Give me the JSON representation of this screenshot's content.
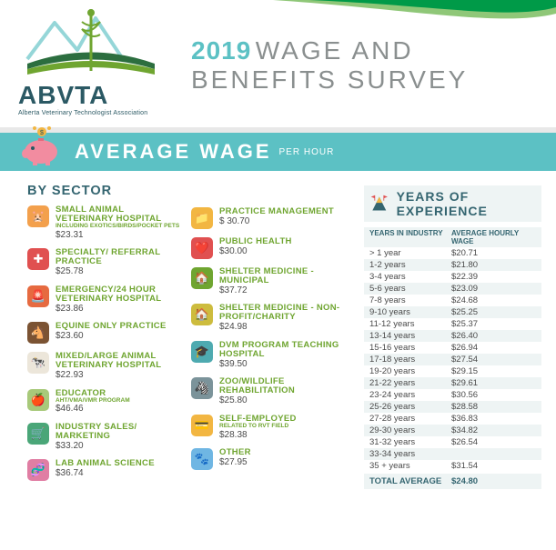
{
  "colors": {
    "teal_dark": "#346570",
    "teal": "#5cc1c4",
    "green": "#6fa530",
    "grey_text": "#8a8f8f",
    "light_panel": "#eef4f4",
    "top_green": "#009a48",
    "top_lightgreen": "#8fc778"
  },
  "logo": {
    "name": "ABVTA",
    "subtitle": "Alberta Veterinary Technologist Association"
  },
  "title": {
    "year": "2019",
    "rest1": "WAGE AND",
    "rest2": "BENEFITS SURVEY"
  },
  "band": {
    "title": "AVERAGE WAGE",
    "sub": "PER HOUR"
  },
  "bySectorTitle": "BY SECTOR",
  "sectors_left": [
    {
      "icon": "🐹",
      "bg": "#f3a04c",
      "label": "SMALL ANIMAL VETERINARY HOSPITAL",
      "sub": "INCLUDING EXOTICS/BIRDS/POCKET PETS",
      "wage": "$23.31"
    },
    {
      "icon": "✚",
      "bg": "#e05050",
      "label": "SPECIALTY/ REFERRAL PRACTICE",
      "sub": "",
      "wage": "$25.78"
    },
    {
      "icon": "🚨",
      "bg": "#e66a40",
      "label": "EMERGENCY/24 HOUR VETERINARY HOSPITAL",
      "sub": "",
      "wage": "$23.86"
    },
    {
      "icon": "🐴",
      "bg": "#7b5333",
      "label": "EQUINE ONLY PRACTICE",
      "sub": "",
      "wage": "$23.60"
    },
    {
      "icon": "🐄",
      "bg": "#ece6da",
      "label": "MIXED/LARGE ANIMAL VETERINARY HOSPITAL",
      "sub": "",
      "wage": "$22.93"
    },
    {
      "icon": "🍎",
      "bg": "#a8c97a",
      "label": "EDUCATOR",
      "sub": "AHT/VMA/VMR PROGRAM",
      "wage": "$46.46"
    },
    {
      "icon": "🛒",
      "bg": "#4aa678",
      "label": "INDUSTRY SALES/ MARKETING",
      "sub": "",
      "wage": "$33.20"
    },
    {
      "icon": "🧬",
      "bg": "#e07ea3",
      "label": "LAB ANIMAL SCIENCE",
      "sub": "",
      "wage": "$36.74"
    }
  ],
  "sectors_right": [
    {
      "icon": "📁",
      "bg": "#f2b642",
      "label": "PRACTICE MANAGEMENT",
      "sub": "",
      "wage": "$ 30.70"
    },
    {
      "icon": "❤️",
      "bg": "#e05050",
      "label": "PUBLIC HEALTH",
      "sub": "",
      "wage": "$30.00"
    },
    {
      "icon": "🏠",
      "bg": "#6fa530",
      "label": "SHELTER MEDICINE - MUNICIPAL",
      "sub": "",
      "wage": "$37.72"
    },
    {
      "icon": "🏠",
      "bg": "#cdbc3e",
      "label": "SHELTER MEDICINE - NON-PROFIT/CHARITY",
      "sub": "",
      "wage": "$24.98"
    },
    {
      "icon": "🎓",
      "bg": "#4eaab0",
      "label": "DVM PROGRAM TEACHING HOSPITAL",
      "sub": "",
      "wage": "$39.50"
    },
    {
      "icon": "🦓",
      "bg": "#7b939a",
      "label": "ZOO/WILDLIFE REHABILITATION",
      "sub": "",
      "wage": "$25.80"
    },
    {
      "icon": "💳",
      "bg": "#f2b642",
      "label": "SELF-EMPLOYED",
      "sub": "RELATED TO RVT FIELD",
      "wage": "$28.38"
    },
    {
      "icon": "🐾",
      "bg": "#6fb6e3",
      "label": "OTHER",
      "sub": "",
      "wage": "$27.95"
    }
  ],
  "yoe": {
    "title": "YEARS OF EXPERIENCE",
    "col1": "YEARS IN INDUSTRY",
    "col2": "AVERAGE HOURLY WAGE",
    "rows": [
      {
        "y": "> 1 year",
        "w": "$20.71"
      },
      {
        "y": "1-2 years",
        "w": "$21.80"
      },
      {
        "y": "3-4 years",
        "w": "$22.39"
      },
      {
        "y": "5-6 years",
        "w": "$23.09"
      },
      {
        "y": "7-8 years",
        "w": "$24.68"
      },
      {
        "y": "9-10 years",
        "w": "$25.25"
      },
      {
        "y": "11-12 years",
        "w": "$25.37"
      },
      {
        "y": "13-14 years",
        "w": "$26.40"
      },
      {
        "y": "15-16 years",
        "w": "$26.94"
      },
      {
        "y": "17-18 years",
        "w": "$27.54"
      },
      {
        "y": "19-20 years",
        "w": "$29.15"
      },
      {
        "y": "21-22 years",
        "w": "$29.61"
      },
      {
        "y": "23-24 years",
        "w": "$30.56"
      },
      {
        "y": "25-26 years",
        "w": "$28.58"
      },
      {
        "y": "27-28 years",
        "w": "$36.83"
      },
      {
        "y": "29-30 years",
        "w": "$34.82"
      },
      {
        "y": "31-32 years",
        "w": "$26.54"
      },
      {
        "y": "33-34 years",
        "w": ""
      },
      {
        "y": "35 + years",
        "w": "$31.54"
      }
    ],
    "total_label": "TOTAL AVERAGE",
    "total_value": "$24.80"
  }
}
